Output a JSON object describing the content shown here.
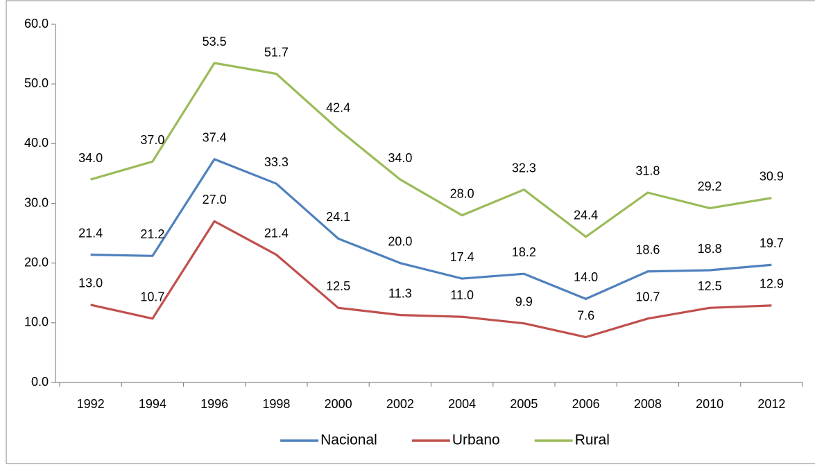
{
  "chart_data": {
    "type": "line",
    "categories": [
      "1992",
      "1994",
      "1996",
      "1998",
      "2000",
      "2002",
      "2004",
      "2005",
      "2006",
      "2008",
      "2010",
      "2012"
    ],
    "series": [
      {
        "name": "Nacional",
        "color": "#4f81bd",
        "values": [
          21.4,
          21.2,
          37.4,
          33.3,
          24.1,
          20,
          17.4,
          18.2,
          14,
          18.6,
          18.8,
          19.7
        ],
        "value_labels": [
          "21.4",
          "21.2",
          "37.4",
          "33.3",
          "24.1",
          "20.0",
          "17.4",
          "18.2",
          "14.0",
          "18.6",
          "18.8",
          "19.7"
        ]
      },
      {
        "name": "Urbano",
        "color": "#c0504d",
        "values": [
          13,
          10.7,
          27,
          21.4,
          12.5,
          11.3,
          11,
          9.9,
          7.6,
          10.7,
          12.5,
          12.9
        ],
        "value_labels": [
          "13.0",
          "10.7",
          "27.0",
          "21.4",
          "12.5",
          "11.3",
          "11.0",
          "9.9",
          "7.6",
          "10.7",
          "12.5",
          "12.9"
        ]
      },
      {
        "name": "Rural",
        "color": "#9bbb59",
        "values": [
          34,
          37,
          53.5,
          51.7,
          42.4,
          34,
          28,
          32.3,
          24.4,
          31.8,
          29.2,
          30.9
        ],
        "value_labels": [
          "34.0",
          "37.0",
          "53.5",
          "51.7",
          "42.4",
          "34.0",
          "28.0",
          "32.3",
          "24.4",
          "31.8",
          "29.2",
          "30.9"
        ]
      }
    ],
    "ylim": [
      0,
      60
    ],
    "yticks": [
      {
        "value": 0,
        "label": "0.0"
      },
      {
        "value": 10,
        "label": "10.0"
      },
      {
        "value": 20,
        "label": "20.0"
      },
      {
        "value": 30,
        "label": "30.0"
      },
      {
        "value": 40,
        "label": "40.0"
      },
      {
        "value": 50,
        "label": "50.0"
      },
      {
        "value": 60,
        "label": "60.0"
      }
    ],
    "grid": false,
    "legend": "bottom"
  }
}
